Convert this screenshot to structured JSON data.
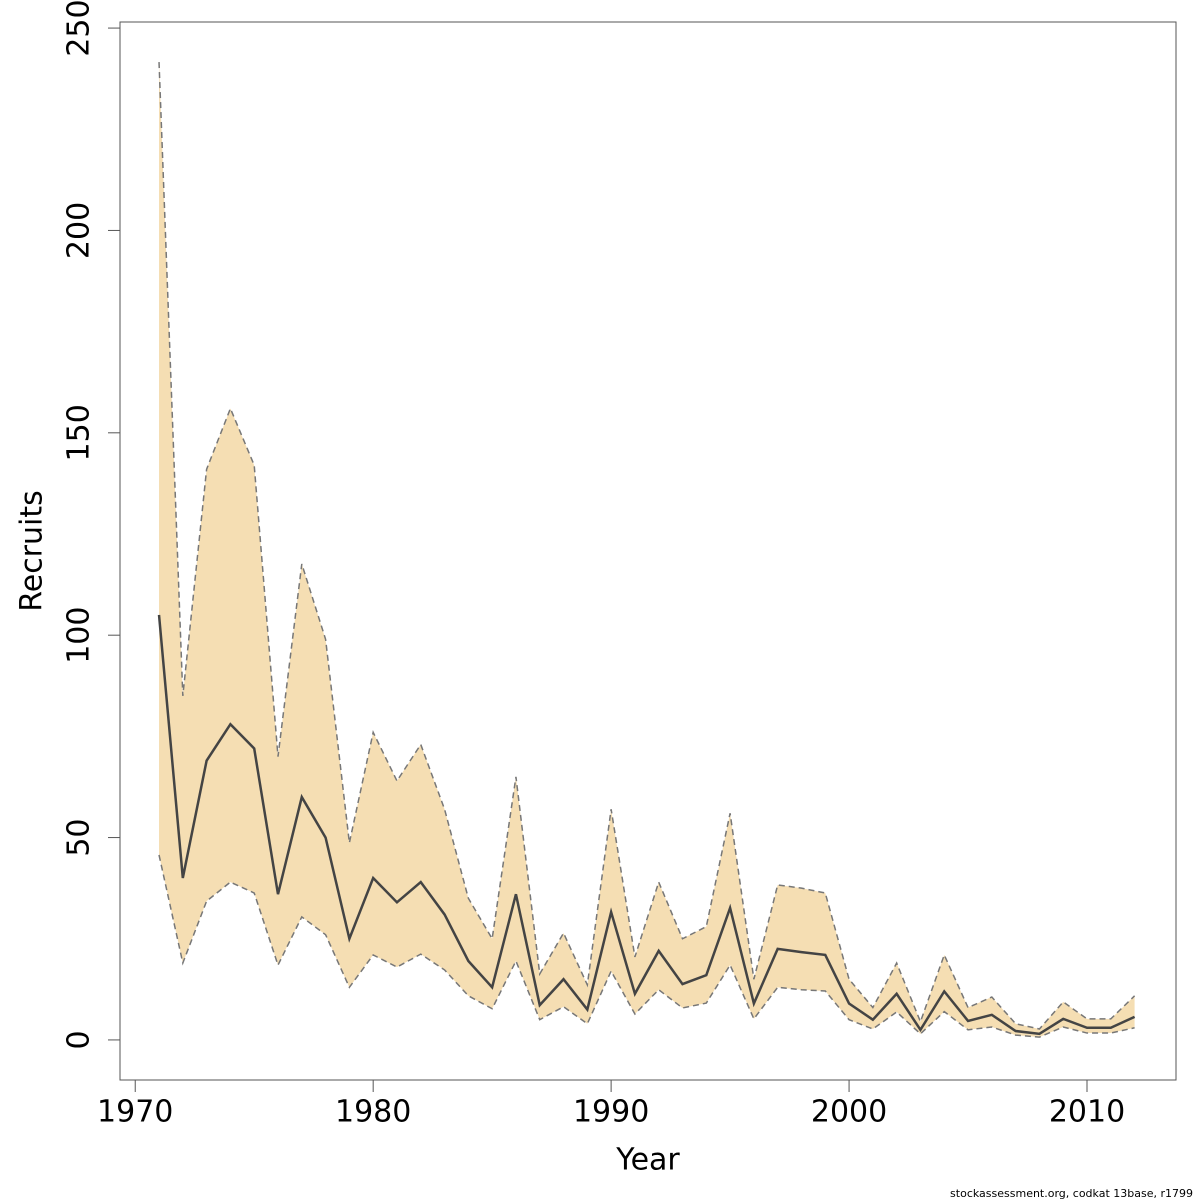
{
  "chart_data": {
    "type": "band-line",
    "xlabel": "Year",
    "ylabel": "Recruits",
    "footnote": "stockassessment.org, codkat 13base, r1799",
    "x": [
      1971,
      1972,
      1973,
      1974,
      1975,
      1976,
      1977,
      1978,
      1979,
      1980,
      1981,
      1982,
      1983,
      1984,
      1985,
      1986,
      1987,
      1988,
      1989,
      1990,
      1991,
      1992,
      1993,
      1994,
      1995,
      1996,
      1997,
      1998,
      1999,
      2000,
      2001,
      2002,
      2003,
      2004,
      2005,
      2006,
      2007,
      2008,
      2009,
      2010,
      2011,
      2012
    ],
    "band_color": "#f5deb3",
    "series": [
      {
        "color": "#777777",
        "dash": true,
        "values": [
          241.6,
          85,
          141,
          156,
          142,
          70,
          117.6,
          99,
          48.7,
          76,
          64,
          73,
          57,
          35,
          25,
          65,
          16.3,
          26.4,
          13.6,
          57,
          20.5,
          39,
          25,
          28,
          56,
          15,
          38.3,
          37.5,
          36.3,
          15,
          8,
          19,
          4.5,
          21,
          8,
          10.6,
          4,
          2.7,
          9.4,
          5.2,
          5.2,
          10.9
        ]
      },
      {
        "color": "#777777",
        "dash": true,
        "values": [
          45.7,
          19,
          34.3,
          39,
          36.3,
          18.5,
          30.4,
          26,
          13,
          21,
          18,
          21.2,
          17.3,
          10.9,
          7.7,
          19.5,
          5,
          8.2,
          4,
          17,
          6.4,
          12.4,
          7.9,
          9.1,
          18.5,
          5.2,
          13,
          12.4,
          12.1,
          5,
          2.7,
          6.9,
          1.5,
          7,
          2.5,
          3.2,
          1.2,
          0.7,
          3.2,
          1.7,
          1.7,
          3
        ]
      },
      {
        "color": "#444444",
        "dash": false,
        "values": [
          105,
          40,
          69,
          78,
          72,
          36,
          60,
          50,
          25,
          40,
          34,
          39,
          31,
          19.5,
          13,
          36,
          8.6,
          15,
          7.5,
          31.6,
          11.4,
          22,
          13.8,
          16,
          32.6,
          9,
          22.5,
          21.7,
          21,
          9,
          5,
          11.4,
          2.5,
          12,
          4.7,
          6.2,
          2.2,
          1.5,
          5.2,
          3,
          3,
          5.7
        ]
      }
    ],
    "xlim": [
      1969.36,
      2013.74
    ],
    "xticks": [
      1970,
      1980,
      1990,
      2000,
      2010
    ],
    "ylim": [
      -9.9,
      251.5
    ],
    "yticks": [
      0,
      50,
      100,
      150,
      200,
      250
    ]
  }
}
